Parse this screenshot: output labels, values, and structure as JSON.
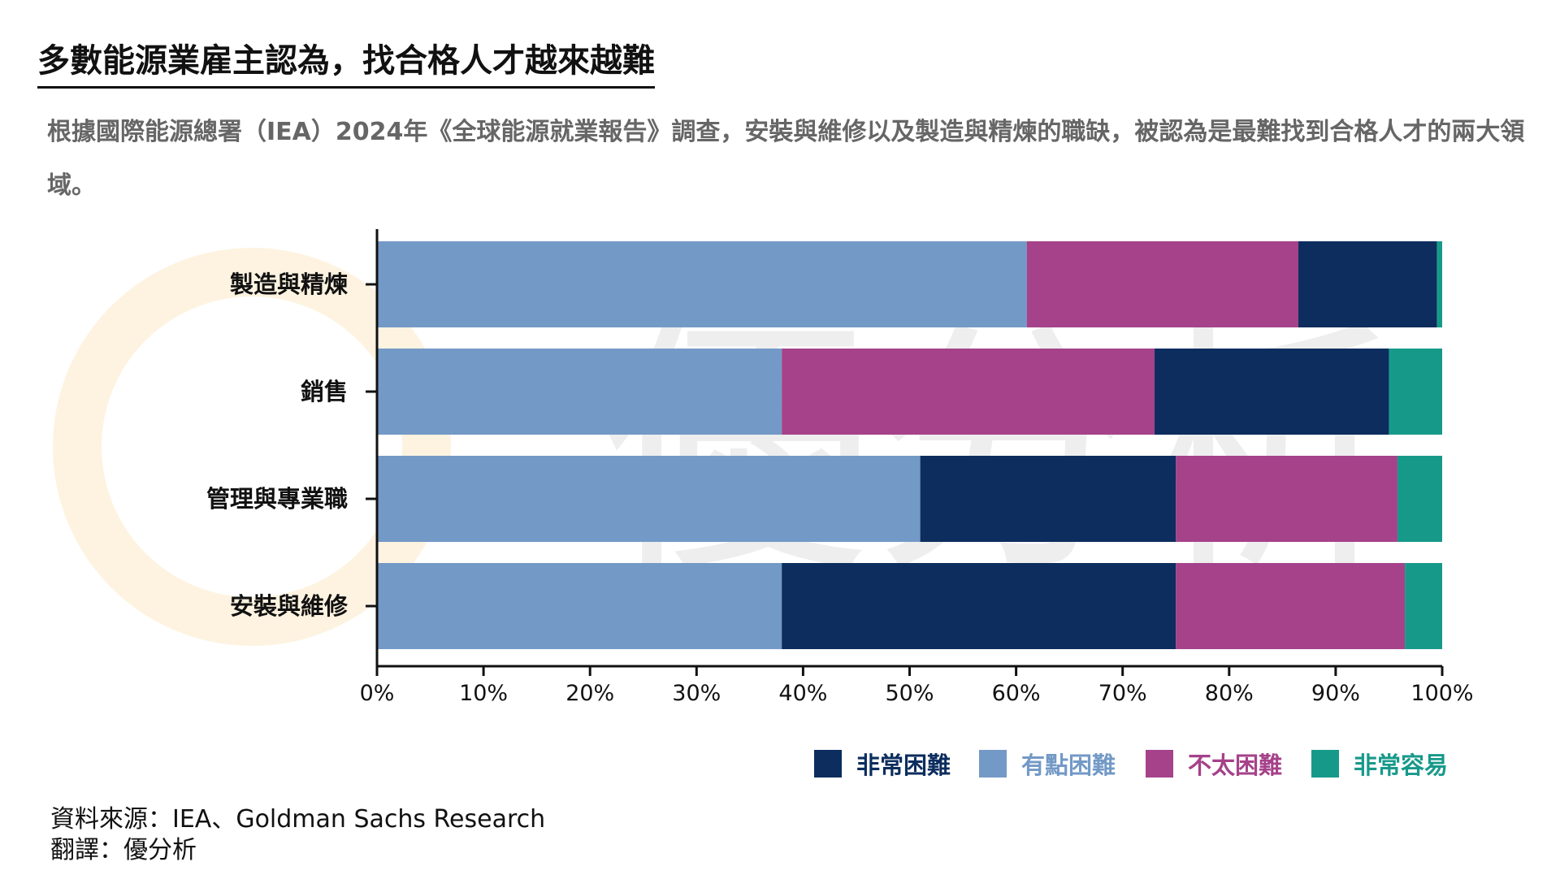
{
  "header": {
    "title": "多數能源業雇主認為，找合格人才越來越難",
    "subtitle": "根據國際能源總署（IEA）2024年《全球能源就業報告》調查，安裝與維修以及製造與精煉的職缺，被認為是最難找到合格人才的兩大領域。"
  },
  "colors": {
    "very_difficult": "#0c2d5e",
    "somewhat_difficult": "#7399c6",
    "not_very_difficult": "#a5428a",
    "very_easy": "#17998a"
  },
  "chart_data": {
    "type": "bar",
    "orientation": "horizontal",
    "stacked": true,
    "categories": [
      "製造與精煉",
      "銷售",
      "管理與專業職",
      "安裝與維修"
    ],
    "series": [
      {
        "name": "非常困難",
        "color": "#0c2d5e",
        "values": [
          13,
          22,
          24,
          37
        ]
      },
      {
        "name": "有點困難",
        "color": "#7399c6",
        "values": [
          61,
          38,
          51,
          38
        ]
      },
      {
        "name": "不太困難",
        "color": "#a5428a",
        "values": [
          25.5,
          35,
          20.8,
          21.5
        ]
      },
      {
        "name": "非常容易",
        "color": "#17998a",
        "values": [
          0.5,
          5,
          4.2,
          3.5
        ]
      }
    ],
    "segment_order": [
      [
        "有點困難",
        "不太困難",
        "非常困難",
        "非常容易"
      ],
      [
        "有點困難",
        "不太困難",
        "非常困難",
        "非常容易"
      ],
      [
        "有點困難",
        "非常困難",
        "不太困難",
        "非常容易"
      ],
      [
        "有點困難",
        "非常困難",
        "不太困難",
        "非常容易"
      ]
    ],
    "xlim": [
      0,
      100
    ],
    "xticks": [
      "0%",
      "10%",
      "20%",
      "30%",
      "40%",
      "50%",
      "60%",
      "70%",
      "80%",
      "90%",
      "100%"
    ],
    "legend_position": "bottom-right",
    "grid": false
  },
  "legend": [
    {
      "label": "非常困難",
      "color": "#0c2d5e"
    },
    {
      "label": "有點困難",
      "color": "#7399c6"
    },
    {
      "label": "不太困難",
      "color": "#a5428a"
    },
    {
      "label": "非常容易",
      "color": "#17998a"
    }
  ],
  "footer": {
    "source": "資料來源：IEA、Goldman Sachs Research",
    "translation": "翻譯：優分析"
  },
  "watermark": {
    "text": "優分析"
  }
}
